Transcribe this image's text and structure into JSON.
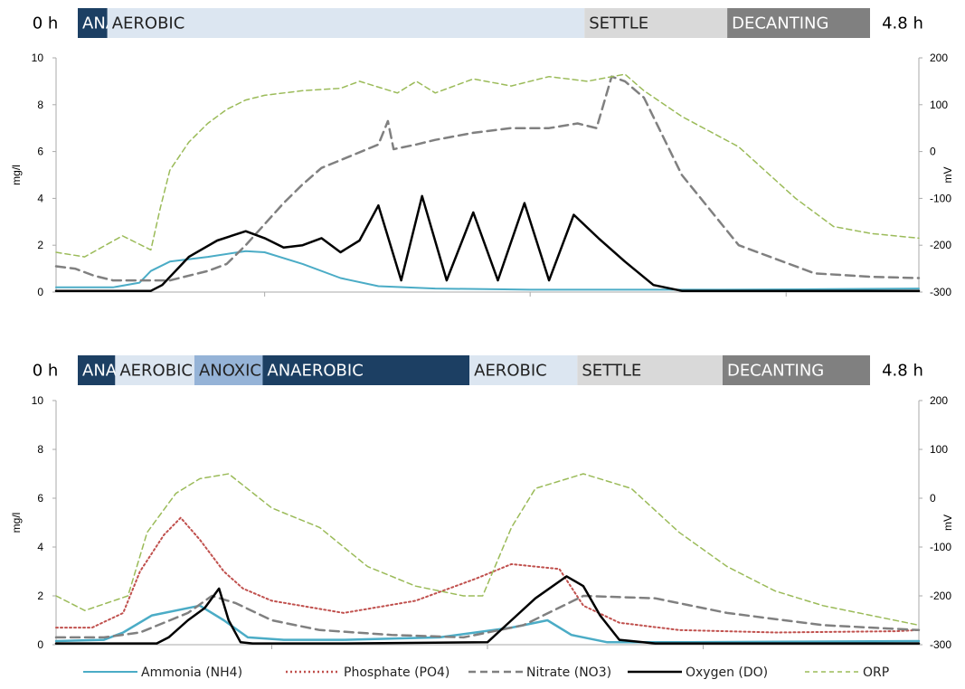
{
  "chart_data": [
    {
      "type": "line",
      "phase_bar": {
        "start_label": "0 h",
        "end_label": "4.8 h",
        "phases": [
          {
            "label": "ANAE.",
            "start": 0.0,
            "end": 0.17,
            "color": "#1c3f63",
            "text_color": "#ffffff"
          },
          {
            "label": "AEROBIC",
            "start": 0.17,
            "end": 2.91,
            "color": "#dce6f1",
            "text_color": "#222222"
          },
          {
            "label": "SETTLE",
            "start": 2.91,
            "end": 3.73,
            "color": "#d9d9d9",
            "text_color": "#222222"
          },
          {
            "label": "DECANTING",
            "start": 3.73,
            "end": 4.55,
            "color": "#808080",
            "text_color": "#ffffff"
          }
        ]
      },
      "xlim": [
        0,
        4.55
      ],
      "x_ticks": [
        1.1,
        2.5,
        3.85
      ],
      "ylabel": "mg/l",
      "ylim": [
        0,
        10
      ],
      "y_ticks": [
        "0",
        "2",
        "4",
        "6",
        "8",
        "10"
      ],
      "y2label": "mV",
      "y2lim": [
        -300,
        200
      ],
      "y2_ticks": [
        "-300",
        "-200",
        "-100",
        "0",
        "100",
        "200"
      ],
      "series": [
        {
          "name": "Ammonia (NH4)",
          "axis": "left",
          "color": "#4bacc6",
          "dash": "",
          "width": 2,
          "x": [
            0,
            0.3,
            0.44,
            0.5,
            0.6,
            0.8,
            1.0,
            1.1,
            1.3,
            1.5,
            1.7,
            2.0,
            2.5,
            3.0,
            3.5,
            4.0,
            4.55
          ],
          "y": [
            0.2,
            0.2,
            0.4,
            0.9,
            1.3,
            1.5,
            1.75,
            1.7,
            1.2,
            0.6,
            0.25,
            0.15,
            0.1,
            0.1,
            0.1,
            0.12,
            0.15
          ]
        },
        {
          "name": "Phosphate (PO4)",
          "axis": "left",
          "color": "#c0504d",
          "dash": "",
          "width": 0,
          "x": [],
          "y": []
        },
        {
          "name": "Nitrate (NO3)",
          "axis": "left",
          "color": "#808080",
          "dash": "10,6",
          "width": 2.5,
          "x": [
            0,
            0.1,
            0.2,
            0.3,
            0.4,
            0.6,
            0.8,
            0.9,
            1.0,
            1.1,
            1.2,
            1.3,
            1.4,
            1.55,
            1.7,
            1.75,
            1.78,
            1.9,
            2.0,
            2.2,
            2.4,
            2.6,
            2.75,
            2.85,
            2.93,
            3.0,
            3.1,
            3.3,
            3.6,
            4.0,
            4.3,
            4.55
          ],
          "y": [
            1.1,
            1.0,
            0.7,
            0.5,
            0.5,
            0.5,
            0.9,
            1.2,
            2.0,
            2.9,
            3.8,
            4.6,
            5.3,
            5.8,
            6.3,
            7.3,
            6.1,
            6.3,
            6.5,
            6.8,
            7.0,
            7.0,
            7.2,
            7.0,
            9.2,
            9.0,
            8.3,
            5.0,
            2.0,
            0.8,
            0.65,
            0.6
          ]
        },
        {
          "name": "Oxygen (DO)",
          "axis": "left",
          "color": "#000000",
          "dash": "",
          "width": 2.5,
          "x": [
            0,
            0.5,
            0.56,
            0.7,
            0.85,
            1.0,
            1.1,
            1.2,
            1.3,
            1.4,
            1.5,
            1.6,
            1.7,
            1.82,
            1.93,
            2.06,
            2.2,
            2.33,
            2.47,
            2.6,
            2.73,
            2.86,
            3.0,
            3.15,
            3.3,
            3.4,
            3.6,
            4.0,
            4.55
          ],
          "y": [
            0.05,
            0.05,
            0.3,
            1.5,
            2.2,
            2.6,
            2.3,
            1.9,
            2.0,
            2.3,
            1.7,
            2.2,
            3.7,
            0.5,
            4.1,
            0.5,
            3.4,
            0.5,
            3.8,
            0.5,
            3.3,
            2.3,
            1.3,
            0.3,
            0.05,
            0.05,
            0.05,
            0.05,
            0.05
          ]
        },
        {
          "name": "ORP",
          "axis": "right",
          "color": "#9bbb59",
          "dash": "6,4",
          "width": 1.5,
          "x": [
            0,
            0.15,
            0.35,
            0.5,
            0.55,
            0.6,
            0.7,
            0.8,
            0.9,
            1.0,
            1.1,
            1.3,
            1.5,
            1.6,
            1.8,
            1.9,
            2.0,
            2.2,
            2.4,
            2.6,
            2.8,
            3.0,
            3.1,
            3.3,
            3.6,
            3.9,
            4.1,
            4.3,
            4.55
          ],
          "y": [
            -215,
            -225,
            -180,
            -210,
            -120,
            -40,
            20,
            60,
            90,
            110,
            120,
            130,
            135,
            150,
            125,
            150,
            125,
            155,
            140,
            160,
            150,
            165,
            130,
            75,
            10,
            -100,
            -160,
            -175,
            -185
          ]
        }
      ],
      "legend_position": "bottom"
    },
    {
      "type": "line",
      "phase_bar": {
        "start_label": "0 h",
        "end_label": "4.8 h",
        "phases": [
          {
            "label": "ANAE.",
            "start": 0.0,
            "end": 0.17,
            "color": "#1c3f63",
            "text_color": "#ffffff"
          },
          {
            "label": "AEROBIC",
            "start": 0.17,
            "end": 0.53,
            "color": "#dce6f1",
            "text_color": "#222222"
          },
          {
            "label": "ANOXIC",
            "start": 0.53,
            "end": 0.84,
            "color": "#95b3d7",
            "text_color": "#222222"
          },
          {
            "label": "ANAEROBIC",
            "start": 0.84,
            "end": 1.78,
            "color": "#1c3f63",
            "text_color": "#ffffff"
          },
          {
            "label": "AEROBIC",
            "start": 1.78,
            "end": 2.27,
            "color": "#dce6f1",
            "text_color": "#222222"
          },
          {
            "label": "SETTLE",
            "start": 2.27,
            "end": 2.93,
            "color": "#d9d9d9",
            "text_color": "#222222"
          },
          {
            "label": "DECANTING",
            "start": 2.93,
            "end": 3.6,
            "color": "#808080",
            "text_color": "#ffffff"
          }
        ]
      },
      "xlim": [
        0,
        3.6
      ],
      "x_ticks": [
        0.9,
        1.8,
        2.7
      ],
      "ylabel": "mg/l",
      "ylim": [
        0,
        10
      ],
      "y_ticks": [
        "0",
        "2",
        "4",
        "6",
        "8",
        "10"
      ],
      "y2label": "mV",
      "y2lim": [
        -300,
        200
      ],
      "y2_ticks": [
        "-300",
        "-200",
        "-100",
        "0",
        "100",
        "200"
      ],
      "series": [
        {
          "name": "Ammonia (NH4)",
          "axis": "left",
          "color": "#4bacc6",
          "dash": "",
          "width": 2.5,
          "x": [
            0,
            0.2,
            0.28,
            0.4,
            0.6,
            0.7,
            0.8,
            0.95,
            1.2,
            1.6,
            1.9,
            2.05,
            2.15,
            2.3,
            2.6,
            3.0,
            3.6
          ],
          "y": [
            0.15,
            0.2,
            0.5,
            1.2,
            1.6,
            1.0,
            0.3,
            0.2,
            0.2,
            0.3,
            0.7,
            1.0,
            0.4,
            0.1,
            0.1,
            0.12,
            0.15
          ]
        },
        {
          "name": "Phosphate (PO4)",
          "axis": "left",
          "color": "#c0504d",
          "dash": "2,3",
          "width": 2,
          "x": [
            0,
            0.15,
            0.28,
            0.35,
            0.45,
            0.52,
            0.6,
            0.7,
            0.78,
            0.9,
            1.2,
            1.5,
            1.75,
            1.9,
            2.1,
            2.2,
            2.35,
            2.6,
            3.0,
            3.5,
            3.6
          ],
          "y": [
            0.7,
            0.7,
            1.3,
            3.0,
            4.5,
            5.2,
            4.3,
            3.0,
            2.3,
            1.8,
            1.3,
            1.8,
            2.7,
            3.3,
            3.1,
            1.6,
            0.9,
            0.6,
            0.5,
            0.55,
            0.6
          ]
        },
        {
          "name": "Nitrate (NO3)",
          "axis": "left",
          "color": "#808080",
          "dash": "10,6",
          "width": 2.5,
          "x": [
            0,
            0.2,
            0.35,
            0.55,
            0.65,
            0.75,
            0.9,
            1.1,
            1.4,
            1.7,
            1.95,
            2.2,
            2.5,
            2.8,
            3.2,
            3.6
          ],
          "y": [
            0.3,
            0.3,
            0.5,
            1.3,
            2.0,
            1.7,
            1.0,
            0.6,
            0.4,
            0.3,
            0.8,
            2.0,
            1.9,
            1.3,
            0.8,
            0.6
          ]
        },
        {
          "name": "Oxygen (DO)",
          "axis": "left",
          "color": "#000000",
          "dash": "",
          "width": 2.5,
          "x": [
            0,
            0.42,
            0.47,
            0.55,
            0.62,
            0.68,
            0.72,
            0.77,
            0.82,
            1.2,
            1.8,
            1.9,
            2.0,
            2.13,
            2.2,
            2.27,
            2.35,
            2.5,
            3.0,
            3.6
          ],
          "y": [
            0.05,
            0.05,
            0.3,
            1.0,
            1.5,
            2.3,
            1.0,
            0.1,
            0.05,
            0.05,
            0.1,
            1.0,
            1.9,
            2.8,
            2.4,
            1.2,
            0.2,
            0.05,
            0.05,
            0.05
          ]
        },
        {
          "name": "ORP",
          "axis": "right",
          "color": "#9bbb59",
          "dash": "6,4",
          "width": 1.5,
          "x": [
            0,
            0.12,
            0.3,
            0.38,
            0.5,
            0.6,
            0.72,
            0.9,
            1.1,
            1.3,
            1.5,
            1.7,
            1.78,
            1.9,
            2.0,
            2.2,
            2.4,
            2.6,
            2.8,
            3.0,
            3.2,
            3.4,
            3.6
          ],
          "y": [
            -200,
            -230,
            -200,
            -70,
            10,
            40,
            50,
            -20,
            -60,
            -140,
            -180,
            -200,
            -200,
            -60,
            20,
            50,
            20,
            -70,
            -140,
            -190,
            -220,
            -240,
            -260
          ]
        }
      ],
      "legend_position": "bottom"
    }
  ]
}
